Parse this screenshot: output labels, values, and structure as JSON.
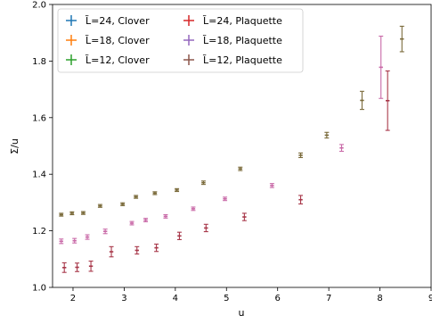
{
  "chart_data": {
    "type": "scatter",
    "title": "",
    "xlabel": "u",
    "ylabel": "Σ/u",
    "xlim": [
      1.6,
      9.0
    ],
    "ylim": [
      1.0,
      2.0
    ],
    "x_ticks": [
      2,
      3,
      4,
      5,
      6,
      7,
      8,
      9
    ],
    "y_ticks": [
      1.0,
      1.2,
      1.4,
      1.6,
      1.8,
      2.0
    ],
    "x_tick_labels": [
      "2",
      "3",
      "4",
      "5",
      "6",
      "7",
      "8",
      "9"
    ],
    "y_tick_labels": [
      "1.0",
      "1.2",
      "1.4",
      "1.6",
      "1.8",
      "2.0"
    ],
    "grid": false,
    "legend_position": "top-left",
    "legend": [
      {
        "label": "L̃=24, Clover",
        "color": "#1f77b4"
      },
      {
        "label": "L̃=18, Clover",
        "color": "#ff7f0e"
      },
      {
        "label": "L̃=12, Clover",
        "color": "#2ca02c"
      },
      {
        "label": "L̃=24, Plaquette",
        "color": "#d62728"
      },
      {
        "label": "L̃=18, Plaquette",
        "color": "#9467bd"
      },
      {
        "label": "L̃=12, Plaquette",
        "color": "#8c564b"
      }
    ],
    "series": [
      {
        "name": "L̃=12, Clover",
        "color": "#7a6a3a",
        "points": [
          [
            1.77,
            1.257,
            0.005
          ],
          [
            1.98,
            1.262,
            0.005
          ],
          [
            2.2,
            1.263,
            0.005
          ],
          [
            2.53,
            1.288,
            0.005
          ],
          [
            2.97,
            1.294,
            0.005
          ],
          [
            3.23,
            1.32,
            0.005
          ],
          [
            3.6,
            1.333,
            0.005
          ],
          [
            4.03,
            1.344,
            0.005
          ],
          [
            4.55,
            1.37,
            0.006
          ],
          [
            5.27,
            1.419,
            0.006
          ],
          [
            6.45,
            1.467,
            0.008
          ],
          [
            6.96,
            1.538,
            0.01
          ],
          [
            7.65,
            1.661,
            0.032
          ],
          [
            8.43,
            1.878,
            0.045
          ]
        ]
      },
      {
        "name": "L̃=18, Plaquette",
        "color": "#c96aa8",
        "points": [
          [
            1.77,
            1.163,
            0.008
          ],
          [
            2.03,
            1.165,
            0.008
          ],
          [
            2.28,
            1.178,
            0.008
          ],
          [
            2.63,
            1.198,
            0.008
          ],
          [
            3.15,
            1.227,
            0.006
          ],
          [
            3.42,
            1.238,
            0.006
          ],
          [
            3.81,
            1.251,
            0.006
          ],
          [
            4.35,
            1.278,
            0.006
          ],
          [
            4.97,
            1.313,
            0.006
          ],
          [
            5.89,
            1.36,
            0.007
          ],
          [
            7.25,
            1.493,
            0.012
          ],
          [
            8.02,
            1.778,
            0.11
          ]
        ]
      },
      {
        "name": "L̃=24, Plaquette",
        "color": "#a8384a",
        "points": [
          [
            1.83,
            1.07,
            0.017
          ],
          [
            2.08,
            1.071,
            0.015
          ],
          [
            2.35,
            1.075,
            0.018
          ],
          [
            2.75,
            1.126,
            0.018
          ],
          [
            3.25,
            1.131,
            0.013
          ],
          [
            3.63,
            1.14,
            0.013
          ],
          [
            4.08,
            1.182,
            0.013
          ],
          [
            4.6,
            1.21,
            0.013
          ],
          [
            5.35,
            1.249,
            0.013
          ],
          [
            6.45,
            1.31,
            0.015
          ],
          [
            8.15,
            1.66,
            0.105
          ]
        ]
      }
    ]
  }
}
